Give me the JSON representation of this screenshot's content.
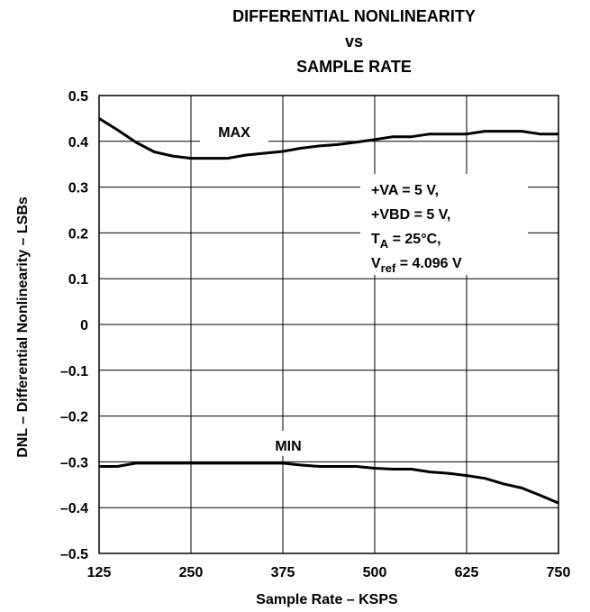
{
  "chart_data": {
    "type": "line",
    "title_lines": [
      "DIFFERENTIAL NONLINEARITY",
      "vs",
      "SAMPLE RATE"
    ],
    "xlabel": "Sample Rate – KSPS",
    "ylabel": "DNL – Differential Nonlinearity – LSBs",
    "xlim": [
      125,
      750
    ],
    "ylim": [
      -0.5,
      0.5
    ],
    "xticks": [
      125,
      250,
      375,
      500,
      625,
      750
    ],
    "xtick_labels": [
      "125",
      "250",
      "375",
      "500",
      "625",
      "750"
    ],
    "yticks": [
      0.5,
      0.4,
      0.3,
      0.2,
      0.1,
      0,
      -0.1,
      -0.2,
      -0.3,
      -0.4,
      -0.5
    ],
    "ytick_labels": [
      "0.5",
      "0.4",
      "0.3",
      "0.2",
      "0.1",
      "0",
      "–0.1",
      "–0.2",
      "–0.3",
      "–0.4",
      "–0.5"
    ],
    "grid": true,
    "series": [
      {
        "name": "MAX",
        "x": [
          125,
          150,
          175,
          200,
          225,
          250,
          275,
          300,
          325,
          350,
          375,
          400,
          425,
          450,
          475,
          500,
          525,
          550,
          575,
          600,
          625,
          650,
          675,
          700,
          725,
          750
        ],
        "y": [
          0.45,
          0.425,
          0.398,
          0.377,
          0.368,
          0.363,
          0.363,
          0.363,
          0.37,
          0.374,
          0.378,
          0.385,
          0.39,
          0.393,
          0.398,
          0.404,
          0.41,
          0.41,
          0.416,
          0.416,
          0.416,
          0.422,
          0.422,
          0.422,
          0.416,
          0.416
        ]
      },
      {
        "name": "MIN",
        "x": [
          125,
          150,
          175,
          200,
          225,
          250,
          275,
          300,
          325,
          350,
          375,
          400,
          425,
          450,
          475,
          500,
          525,
          550,
          575,
          600,
          625,
          650,
          675,
          700,
          725,
          750
        ],
        "y": [
          -0.31,
          -0.31,
          -0.303,
          -0.303,
          -0.303,
          -0.303,
          -0.303,
          -0.303,
          -0.303,
          -0.303,
          -0.303,
          -0.307,
          -0.31,
          -0.31,
          -0.31,
          -0.314,
          -0.316,
          -0.316,
          -0.322,
          -0.325,
          -0.33,
          -0.336,
          -0.348,
          -0.357,
          -0.373,
          -0.39
        ]
      }
    ],
    "conditions": {
      "va": "+VA = 5 V,",
      "vbd": "+VBD = 5 V,",
      "ta_main": "T",
      "ta_sub": "A",
      "ta_rest": " = 25°C,",
      "vref_main": "V",
      "vref_sub": "ref",
      "vref_rest": " = 4.096 V"
    }
  }
}
